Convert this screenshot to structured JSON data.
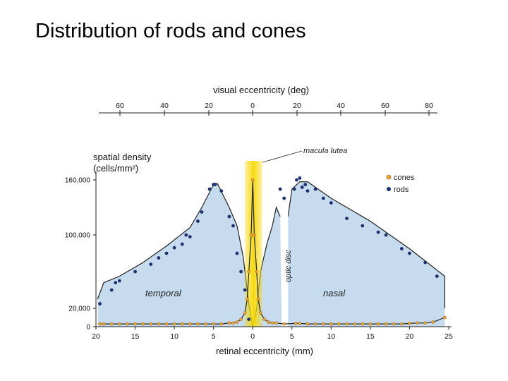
{
  "slide": {
    "title": "Distribution of rods and cones"
  },
  "chart_data": {
    "type": "scatter",
    "title": "",
    "top_axis": {
      "label": "visual eccentricity (deg)",
      "ticks": [
        "60",
        "40",
        "20",
        "0",
        "20",
        "40",
        "60",
        "80"
      ]
    },
    "x_axis": {
      "label": "retinal eccentricity (mm)",
      "ticks": [
        "20",
        "15",
        "10",
        "5",
        "0",
        "5",
        "10",
        "15",
        "20",
        "25"
      ],
      "range": [
        -20,
        25
      ]
    },
    "y_axis": {
      "label_line1": "spatial density",
      "label_line2": "(cells/mm²)",
      "ticks": [
        "160,000",
        "100,000",
        "20,000",
        "0"
      ],
      "range": [
        0,
        160000
      ]
    },
    "annotations": {
      "macula": "macula lutea",
      "optic_disc": "optic disc",
      "temporal": "temporal",
      "nasal": "nasal"
    },
    "legend": {
      "placement": "top-right"
    },
    "colors": {
      "rods": "#1d2f6e",
      "cones": "#f2a531",
      "fill": "#c6dcee",
      "macula": "#f5d800"
    },
    "series": [
      {
        "name": "rods",
        "x": [
          -19.5,
          -18,
          -17.5,
          -17,
          -15,
          -13,
          -12,
          -11,
          -10,
          -9,
          -8.5,
          -8,
          -7,
          -6.5,
          -5.5,
          -5,
          -4.8,
          -4,
          -3,
          -2.5,
          -2,
          -1.5,
          -1,
          -0.5,
          3.5,
          4,
          5.3,
          5.6,
          6,
          6.3,
          6.7,
          7,
          8,
          9,
          10,
          12,
          14,
          16,
          17,
          19,
          20,
          22,
          23.5
        ],
        "y": [
          25000,
          40000,
          48000,
          50000,
          60000,
          68000,
          75000,
          80000,
          86000,
          90000,
          100000,
          98000,
          115000,
          125000,
          150000,
          155000,
          155000,
          148000,
          120000,
          110000,
          80000,
          60000,
          40000,
          8000,
          150000,
          140000,
          150000,
          160000,
          162000,
          152000,
          155000,
          148000,
          150000,
          140000,
          135000,
          118000,
          110000,
          103000,
          100000,
          85000,
          80000,
          70000,
          55000
        ]
      },
      {
        "name": "cones",
        "x": [
          -19.5,
          -19,
          -18,
          -17,
          -16,
          -15,
          -14,
          -13,
          -12,
          -11,
          -10,
          -9,
          -8,
          -7,
          -6,
          -5,
          -4,
          -3,
          -2.5,
          -2,
          -1.5,
          -1,
          -0.7,
          -0.5,
          -0.2,
          0,
          0.2,
          0.5,
          0.7,
          1,
          1.5,
          2,
          2.5,
          3,
          4,
          5.5,
          6,
          7,
          8,
          9,
          10,
          11,
          12,
          13,
          14,
          15,
          16,
          17,
          18,
          19,
          20,
          21,
          22,
          23,
          24.5
        ],
        "y": [
          3000,
          3000,
          3000,
          3000,
          3000,
          3000,
          3000,
          3000,
          3000,
          3000,
          3000,
          3000,
          3000,
          3000,
          3000,
          3000,
          3000,
          4000,
          4000,
          5000,
          8000,
          15000,
          30000,
          60000,
          100000,
          160000,
          100000,
          60000,
          30000,
          15000,
          8000,
          5000,
          4000,
          4000,
          3000,
          3500,
          3500,
          3000,
          3000,
          3000,
          3000,
          3000,
          3000,
          3000,
          3000,
          3000,
          3000,
          3000,
          3000,
          3000,
          3500,
          4000,
          4000,
          5000,
          10000
        ]
      }
    ]
  }
}
